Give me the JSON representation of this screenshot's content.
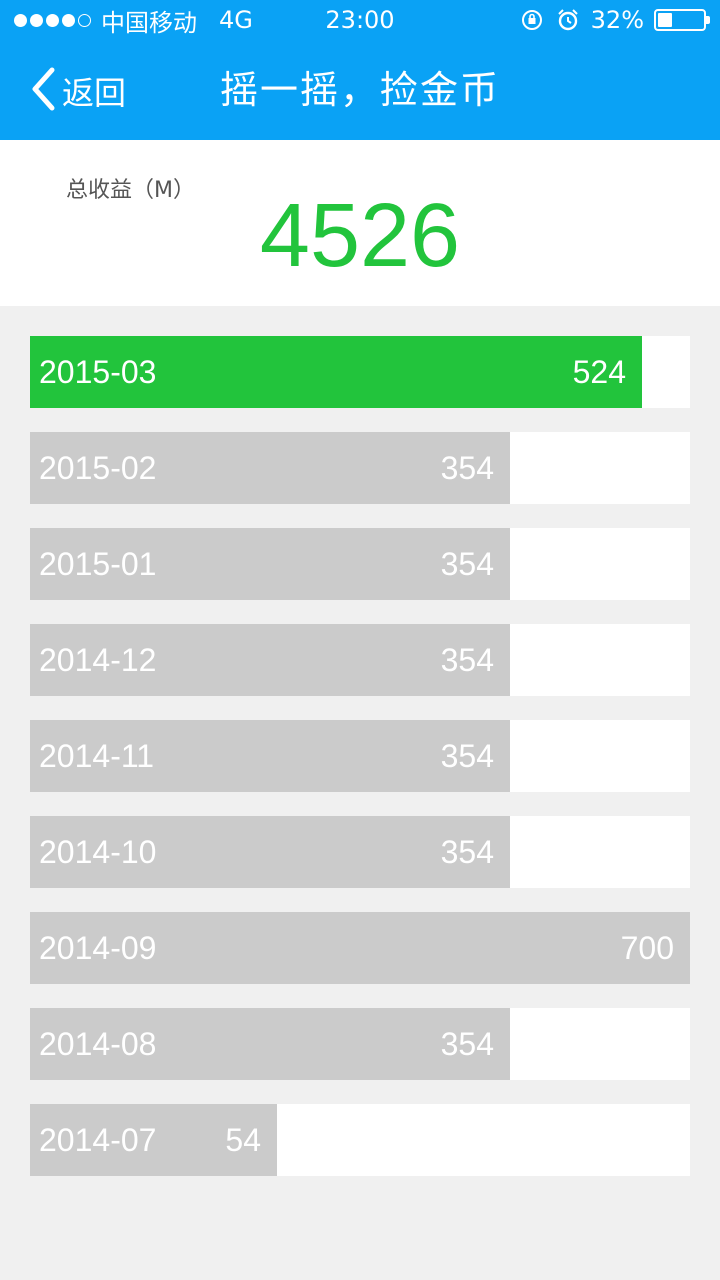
{
  "status_bar": {
    "carrier": "中国移动",
    "network": "4G",
    "time": "23:00",
    "battery_text": "32%",
    "battery_level": 0.32,
    "signal_bars": 4,
    "icons": [
      "rotation-lock-icon",
      "alarm-icon",
      "battery-icon"
    ]
  },
  "nav": {
    "back_label": "返回",
    "title": "摇一摇，捡金币"
  },
  "summary": {
    "label": "总收益（M）",
    "value": "4526"
  },
  "colors": {
    "header": "#0aa2f5",
    "accent": "#22c43c",
    "bar": "#cbcbcb"
  },
  "records": [
    {
      "month": "2015-03",
      "value": 524,
      "active": true,
      "fill": 0.927
    },
    {
      "month": "2015-02",
      "value": 354,
      "active": false,
      "fill": 0.727
    },
    {
      "month": "2015-01",
      "value": 354,
      "active": false,
      "fill": 0.727
    },
    {
      "month": "2014-12",
      "value": 354,
      "active": false,
      "fill": 0.727
    },
    {
      "month": "2014-11",
      "value": 354,
      "active": false,
      "fill": 0.727
    },
    {
      "month": "2014-10",
      "value": 354,
      "active": false,
      "fill": 0.727
    },
    {
      "month": "2014-09",
      "value": 700,
      "active": false,
      "fill": 1.0
    },
    {
      "month": "2014-08",
      "value": 354,
      "active": false,
      "fill": 0.727
    },
    {
      "month": "2014-07",
      "value": 54,
      "active": false,
      "fill": 0.374
    }
  ]
}
